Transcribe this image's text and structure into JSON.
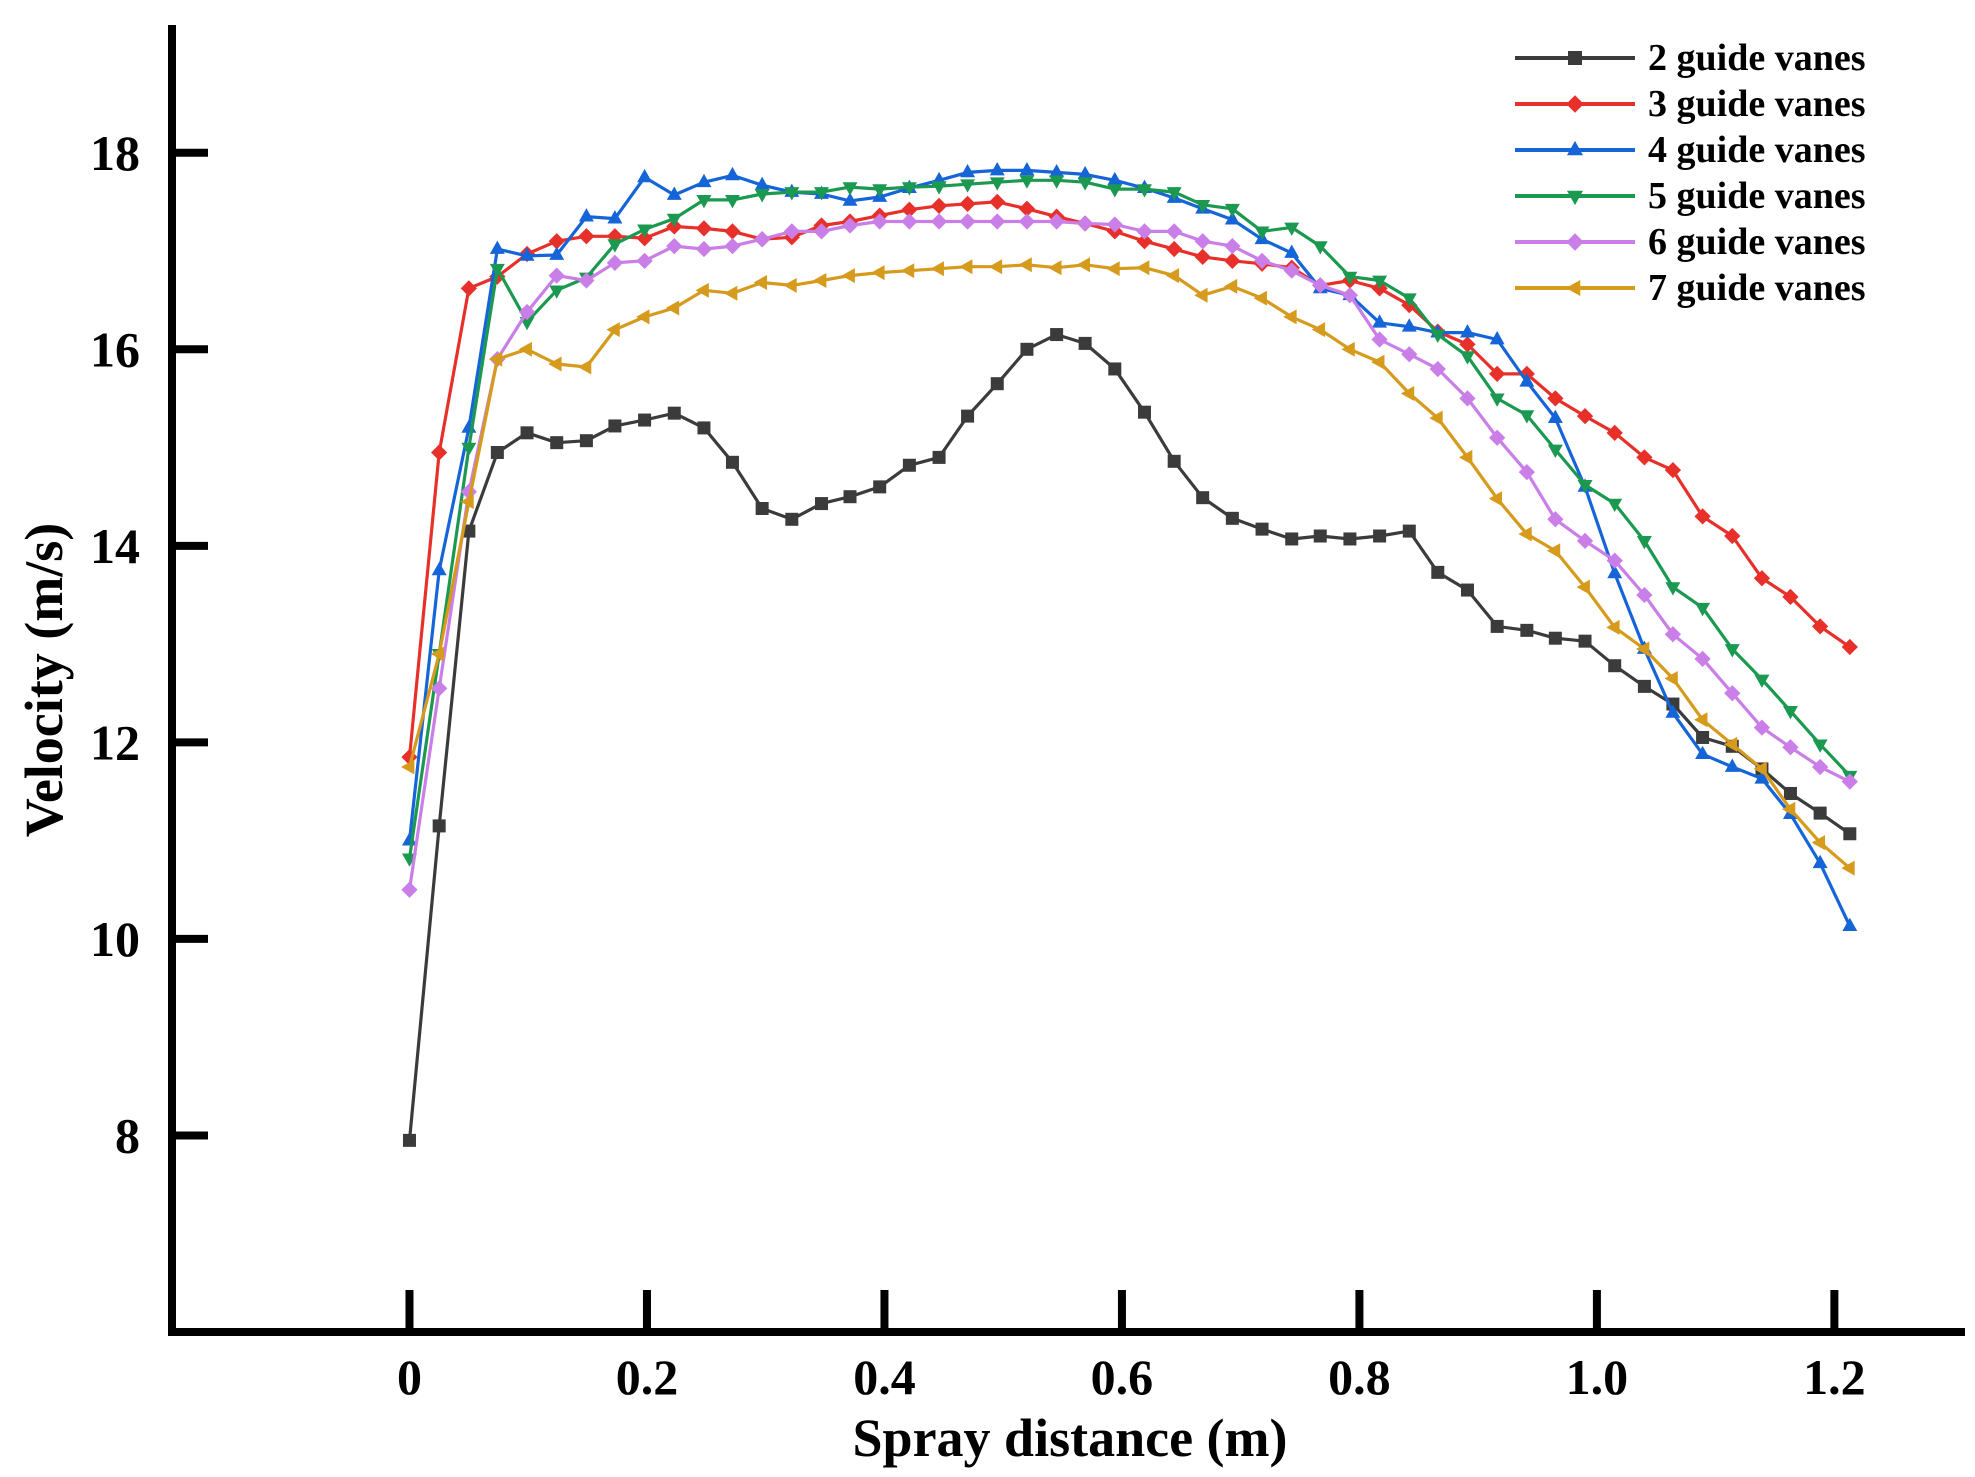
{
  "chart_data": {
    "type": "line",
    "title": "",
    "xlabel": "Spray distance (m)",
    "ylabel": "Velocity (m/s)",
    "xlim": [
      -0.2,
      1.31
    ],
    "ylim": [
      6,
      19.3
    ],
    "xticks": [
      0,
      0.2,
      0.4,
      0.6,
      0.8,
      1.0,
      1.2
    ],
    "xtick_labels": [
      "0",
      "0.2",
      "0.4",
      "0.6",
      "0.8",
      "1.0",
      "1.2"
    ],
    "yticks": [
      8,
      10,
      12,
      14,
      16,
      18
    ],
    "ytick_labels": [
      "8",
      "10",
      "12",
      "14",
      "16",
      "18"
    ],
    "legend_position": "top-right",
    "x": [
      0,
      0.025,
      0.05,
      0.074,
      0.099,
      0.124,
      0.149,
      0.173,
      0.198,
      0.223,
      0.248,
      0.272,
      0.297,
      0.322,
      0.347,
      0.371,
      0.396,
      0.421,
      0.446,
      0.47,
      0.495,
      0.52,
      0.545,
      0.569,
      0.594,
      0.619,
      0.644,
      0.668,
      0.693,
      0.718,
      0.743,
      0.767,
      0.792,
      0.817,
      0.842,
      0.866,
      0.891,
      0.916,
      0.941,
      0.965,
      0.99,
      1.015,
      1.04,
      1.064,
      1.089,
      1.114,
      1.139,
      1.163,
      1.188,
      1.213
    ],
    "series": [
      {
        "name": "2 guide vanes",
        "color": "#3b3b3b",
        "marker": "square",
        "values": [
          7.95,
          11.15,
          14.15,
          14.95,
          15.15,
          15.05,
          15.07,
          15.22,
          15.28,
          15.35,
          15.2,
          14.85,
          14.38,
          14.27,
          14.43,
          14.5,
          14.6,
          14.82,
          14.9,
          15.32,
          15.65,
          16.0,
          16.15,
          16.06,
          15.8,
          15.36,
          14.86,
          14.49,
          14.28,
          14.17,
          14.07,
          14.1,
          14.07,
          14.1,
          14.15,
          13.73,
          13.55,
          13.18,
          13.14,
          13.06,
          13.03,
          12.78,
          12.57,
          12.39,
          12.05,
          11.96,
          11.73,
          11.48,
          11.28,
          11.07
        ]
      },
      {
        "name": "3 guide vanes",
        "color": "#e8302a",
        "marker": "diamond",
        "values": [
          11.85,
          14.95,
          16.62,
          16.74,
          16.97,
          17.1,
          17.15,
          17.15,
          17.13,
          17.25,
          17.23,
          17.2,
          17.12,
          17.14,
          17.26,
          17.3,
          17.36,
          17.42,
          17.46,
          17.48,
          17.5,
          17.43,
          17.35,
          17.28,
          17.2,
          17.1,
          17.02,
          16.94,
          16.9,
          16.87,
          16.83,
          16.65,
          16.7,
          16.62,
          16.45,
          16.18,
          16.05,
          15.75,
          15.75,
          15.5,
          15.32,
          15.15,
          14.9,
          14.77,
          14.3,
          14.1,
          13.67,
          13.48,
          13.18,
          12.97
        ]
      },
      {
        "name": "4 guide vanes",
        "color": "#1565d8",
        "marker": "triangle-up",
        "values": [
          11.0,
          13.75,
          15.2,
          17.02,
          16.95,
          16.96,
          17.35,
          17.33,
          17.75,
          17.57,
          17.7,
          17.77,
          17.67,
          17.6,
          17.58,
          17.51,
          17.55,
          17.64,
          17.72,
          17.8,
          17.82,
          17.82,
          17.8,
          17.78,
          17.72,
          17.64,
          17.54,
          17.43,
          17.32,
          17.12,
          16.98,
          16.62,
          16.55,
          16.27,
          16.23,
          16.17,
          16.17,
          16.1,
          15.67,
          15.3,
          14.6,
          13.72,
          12.95,
          12.3,
          11.88,
          11.75,
          11.63,
          11.27,
          10.77,
          10.13
        ]
      },
      {
        "name": "5 guide vanes",
        "color": "#1b9950",
        "marker": "triangle-down",
        "values": [
          10.82,
          12.9,
          15.0,
          16.82,
          16.28,
          16.6,
          16.73,
          17.07,
          17.22,
          17.33,
          17.52,
          17.52,
          17.58,
          17.6,
          17.6,
          17.65,
          17.63,
          17.65,
          17.66,
          17.68,
          17.7,
          17.72,
          17.72,
          17.7,
          17.63,
          17.63,
          17.6,
          17.47,
          17.43,
          17.2,
          17.24,
          17.05,
          16.74,
          16.7,
          16.52,
          16.15,
          15.93,
          15.5,
          15.33,
          14.98,
          14.62,
          14.43,
          14.05,
          13.58,
          13.37,
          12.95,
          12.64,
          12.32,
          11.98,
          11.66
        ]
      },
      {
        "name": "6 guide vanes",
        "color": "#c97ee8",
        "marker": "diamond",
        "values": [
          10.5,
          12.55,
          14.55,
          15.9,
          16.38,
          16.75,
          16.7,
          16.88,
          16.9,
          17.05,
          17.02,
          17.05,
          17.12,
          17.2,
          17.2,
          17.26,
          17.3,
          17.3,
          17.3,
          17.3,
          17.3,
          17.3,
          17.3,
          17.28,
          17.27,
          17.2,
          17.2,
          17.1,
          17.05,
          16.9,
          16.8,
          16.65,
          16.55,
          16.1,
          15.95,
          15.8,
          15.5,
          15.1,
          14.75,
          14.27,
          14.05,
          13.85,
          13.5,
          13.1,
          12.85,
          12.5,
          12.15,
          11.95,
          11.75,
          11.6
        ]
      },
      {
        "name": "7 guide vanes",
        "color": "#d69a1c",
        "marker": "triangle-left",
        "values": [
          11.75,
          12.9,
          14.45,
          15.9,
          16.0,
          15.85,
          15.82,
          16.2,
          16.33,
          16.42,
          16.6,
          16.57,
          16.68,
          16.65,
          16.7,
          16.75,
          16.78,
          16.8,
          16.82,
          16.84,
          16.84,
          16.86,
          16.83,
          16.86,
          16.82,
          16.83,
          16.75,
          16.55,
          16.64,
          16.52,
          16.33,
          16.2,
          16.0,
          15.87,
          15.55,
          15.3,
          14.9,
          14.48,
          14.12,
          13.95,
          13.58,
          13.17,
          12.95,
          12.65,
          12.23,
          11.98,
          11.73,
          11.32,
          10.98,
          10.72
        ]
      }
    ]
  }
}
